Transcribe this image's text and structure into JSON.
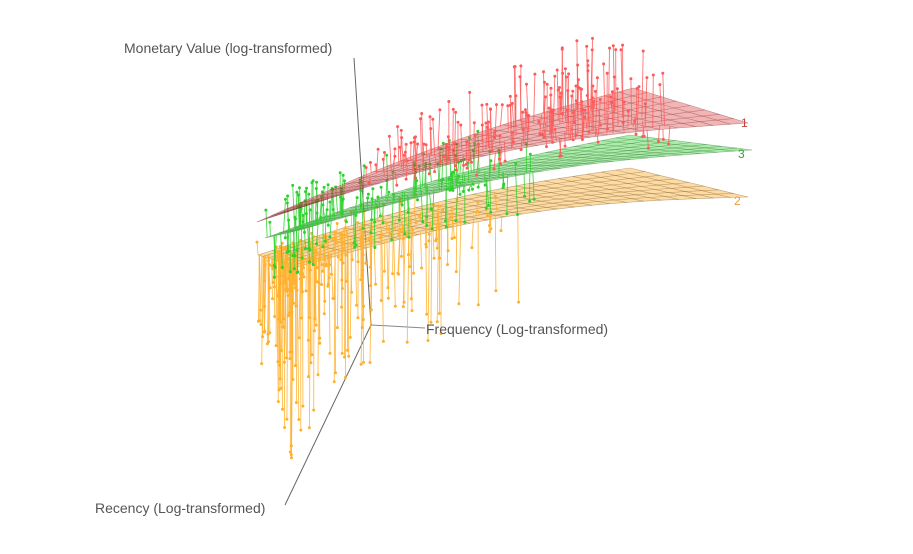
{
  "chart_data": {
    "type": "scatter",
    "subtype": "3d-scatter-with-fitted-surfaces",
    "title": "",
    "axes": {
      "x": {
        "label": "Frequency (Log-transformed)"
      },
      "y": {
        "label": "Recency (Log-transformed)"
      },
      "z": {
        "label": "Monetary Value (log-transformed)"
      }
    },
    "grid": false,
    "legend": "none",
    "series": [
      {
        "name": "1",
        "color": "#ff5a5a",
        "surface_label": "1",
        "point_count": 210
      },
      {
        "name": "3",
        "color": "#2ed12e",
        "surface_label": "3",
        "point_count": 190
      },
      {
        "name": "2",
        "color": "#ffb02e",
        "surface_label": "2",
        "point_count": 320
      }
    ],
    "surfaces": [
      {
        "series": "1",
        "fill": "#e35a5a",
        "opacity": 0.45,
        "mesh": "#7a2a2a"
      },
      {
        "series": "3",
        "fill": "#57d957",
        "opacity": 0.5,
        "mesh": "#2a6a2a"
      },
      {
        "series": "2",
        "fill": "#ffbe5a",
        "opacity": 0.55,
        "mesh": "#6a5020"
      }
    ]
  }
}
